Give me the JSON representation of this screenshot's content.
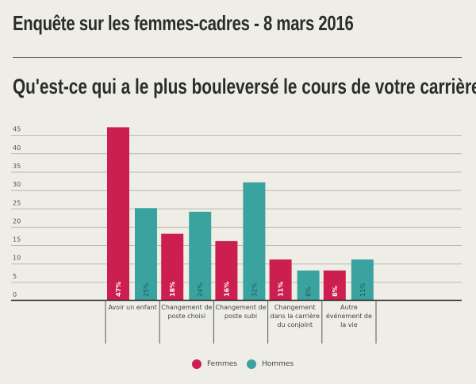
{
  "header": {
    "title": "Enquête sur les femmes-cadres - 8 mars 2016",
    "question": "Qu'est-ce qui a le plus bouleversé le cours de votre carrière ?"
  },
  "colors": {
    "femmes": "#cc1f4f",
    "hommes": "#3aa39f",
    "background": "#eeede6",
    "grid": "#b9b8b0"
  },
  "chart_data": {
    "type": "bar",
    "title": "Qu'est-ce qui a le plus bouleversé le cours de votre carrière ?",
    "xlabel": "",
    "ylabel": "",
    "ylim": [
      0,
      47
    ],
    "yticks": [
      0,
      5,
      10,
      15,
      20,
      25,
      30,
      35,
      40,
      45
    ],
    "grid": true,
    "legend_position": "bottom-center",
    "categories": [
      [
        "Avoir un enfant"
      ],
      [
        "Changement de",
        "poste choisi"
      ],
      [
        "Changement de",
        "poste subi"
      ],
      [
        "Changement",
        "dans la carrière",
        "du conjoint"
      ],
      [
        "Autre",
        "événement de",
        "la vie"
      ]
    ],
    "series": [
      {
        "name": "Femmes",
        "values": [
          47,
          18,
          16,
          11,
          8
        ],
        "labels": [
          "47%",
          "18%",
          "16%",
          "11%",
          "8%"
        ]
      },
      {
        "name": "Hommes",
        "values": [
          25,
          24,
          32,
          8,
          11
        ],
        "labels": [
          "25%",
          "24%",
          "32%",
          "8%",
          "11%"
        ]
      }
    ]
  }
}
